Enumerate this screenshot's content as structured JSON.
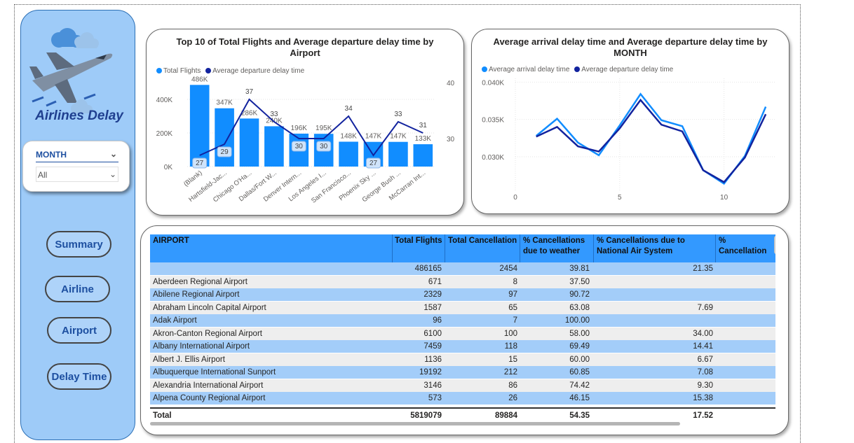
{
  "sidebar": {
    "brand": "Airlines Delay",
    "slicer": {
      "title": "MONTH",
      "value": "All"
    },
    "nav": [
      "Summary",
      "Airline",
      "Airport",
      "Delay Time"
    ]
  },
  "chart1": {
    "title": "Top 10 of Total Flights and Average departure delay time by Airport",
    "legend": [
      "Total Flights",
      "Average departure delay time"
    ],
    "y_ticks": [
      "400K",
      "200K",
      "0K"
    ],
    "y2_ticks": [
      "40",
      "30"
    ]
  },
  "chart2": {
    "title": "Average arrival delay time and Average departure delay time by MONTH",
    "legend": [
      "Average arrival delay time",
      "Average departure delay time"
    ],
    "y_ticks": [
      "0.040K",
      "0.035K",
      "0.030K"
    ],
    "x_ticks": [
      "0",
      "5",
      "10"
    ]
  },
  "chart_data": [
    {
      "type": "bar",
      "title": "Top 10 of Total Flights and Average departure delay time by Airport",
      "categories": [
        "(Blank)",
        "Hartsfield-Jac...",
        "Chicago O'Ha...",
        "Dallas/Fort W...",
        "Denver Intern...",
        "Los Angeles I...",
        "San Francisco...",
        "Phoenix Sky ...",
        "George Bush ...",
        "McCarran Int..."
      ],
      "series": [
        {
          "name": "Total Flights",
          "values": [
            486165,
            347000,
            286000,
            240000,
            196000,
            195000,
            148000,
            147000,
            147000,
            133000
          ],
          "labels": [
            "486K",
            "347K",
            "286K",
            "240K",
            "196K",
            "195K",
            "148K",
            "147K",
            "147K",
            "133K"
          ]
        },
        {
          "name": "Average departure delay time",
          "values": [
            27,
            29,
            37,
            33,
            30,
            30,
            34,
            27,
            33,
            31
          ],
          "labels": [
            "27",
            "29",
            "37",
            "33",
            "30",
            "30",
            "34",
            "27",
            "33",
            "31"
          ]
        }
      ],
      "ylim": [
        0,
        500000
      ],
      "y2lim": [
        25,
        40
      ]
    },
    {
      "type": "line",
      "title": "Average arrival delay time and Average departure delay time by MONTH",
      "x": [
        1,
        2,
        3,
        4,
        5,
        6,
        7,
        8,
        9,
        10,
        11,
        12
      ],
      "series": [
        {
          "name": "Average arrival delay time",
          "values": [
            0.0328,
            0.0351,
            0.0319,
            0.0302,
            0.0342,
            0.0384,
            0.0349,
            0.0341,
            0.0282,
            0.0264,
            0.0301,
            0.0367
          ]
        },
        {
          "name": "Average departure delay time",
          "values": [
            0.0327,
            0.034,
            0.0314,
            0.0307,
            0.0338,
            0.0376,
            0.0343,
            0.0334,
            0.0282,
            0.0266,
            0.0299,
            0.0357
          ]
        }
      ],
      "xlim": [
        0,
        12.5
      ],
      "ylim": [
        0.0255,
        0.0405
      ],
      "colors": [
        "#118dff",
        "#12239e"
      ]
    }
  ],
  "table": {
    "columns": [
      "AIRPORT",
      "Total Flights",
      "Total Cancellation",
      "% Cancellations due to weather",
      "% Cancellations due to National Air System",
      "% Cancellation"
    ],
    "rows": [
      [
        "",
        "486165",
        "2454",
        "39.81",
        "21.35"
      ],
      [
        "Aberdeen Regional Airport",
        "671",
        "8",
        "37.50",
        ""
      ],
      [
        "Abilene Regional Airport",
        "2329",
        "97",
        "90.72",
        ""
      ],
      [
        "Abraham Lincoln Capital Airport",
        "1587",
        "65",
        "63.08",
        "7.69"
      ],
      [
        "Adak Airport",
        "96",
        "7",
        "100.00",
        ""
      ],
      [
        "Akron-Canton Regional Airport",
        "6100",
        "100",
        "58.00",
        "34.00"
      ],
      [
        "Albany International Airport",
        "7459",
        "118",
        "69.49",
        "14.41"
      ],
      [
        "Albert J. Ellis Airport",
        "1136",
        "15",
        "60.00",
        "6.67"
      ],
      [
        "Albuquerque International Sunport",
        "19192",
        "212",
        "60.85",
        "7.08"
      ],
      [
        "Alexandria International Airport",
        "3146",
        "86",
        "74.42",
        "9.30"
      ],
      [
        "Alpena County Regional Airport",
        "573",
        "26",
        "46.15",
        "15.38"
      ]
    ],
    "total": [
      "Total",
      "5819079",
      "89884",
      "54.35",
      "17.52"
    ]
  },
  "colors": {
    "bar": "#118dff",
    "line_dark": "#12239e",
    "header": "#3399ff",
    "band": "#a3cdf9",
    "sidebar": "#9ecbf8",
    "brand": "#1f3f8f"
  }
}
